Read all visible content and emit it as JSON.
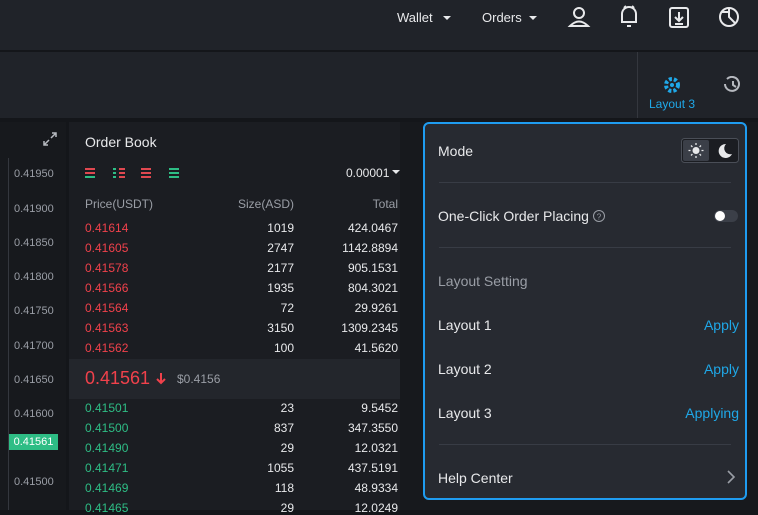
{
  "nav": {
    "wallet": "Wallet",
    "orders": "Orders"
  },
  "toolbar": {
    "layout": "Layout 3"
  },
  "price_axis": {
    "labels": [
      "0.41950",
      "0.41900",
      "0.41850",
      "0.41800",
      "0.41750",
      "0.41700",
      "0.41650",
      "0.41600",
      "0.41500"
    ],
    "current": "0.41561"
  },
  "order_book": {
    "title": "Order Book",
    "precision": "0.00001",
    "headers": [
      "Price(USDT)",
      "Size(ASD)",
      "Total"
    ],
    "asks": [
      [
        "0.41614",
        "1019",
        "424.0467"
      ],
      [
        "0.41605",
        "2747",
        "1142.8894"
      ],
      [
        "0.41578",
        "2177",
        "905.1531"
      ],
      [
        "0.41566",
        "1935",
        "804.3021"
      ],
      [
        "0.41564",
        "72",
        "29.9261"
      ],
      [
        "0.41563",
        "3150",
        "1309.2345"
      ],
      [
        "0.41562",
        "100",
        "41.5620"
      ]
    ],
    "last_price": "0.41561",
    "last_price_usd": "$0.4156",
    "bids": [
      [
        "0.41501",
        "23",
        "9.5452"
      ],
      [
        "0.41500",
        "837",
        "347.3550"
      ],
      [
        "0.41490",
        "29",
        "12.0321"
      ],
      [
        "0.41471",
        "1055",
        "437.5191"
      ],
      [
        "0.41469",
        "118",
        "48.9334"
      ],
      [
        "0.41465",
        "29",
        "12.0249"
      ]
    ]
  },
  "settings": {
    "mode": "Mode",
    "one_click": "One-Click Order Placing",
    "layout_setting": "Layout Setting",
    "layouts": [
      {
        "name": "Layout 1",
        "action": "Apply"
      },
      {
        "name": "Layout 2",
        "action": "Apply"
      },
      {
        "name": "Layout 3",
        "action": "Applying"
      }
    ],
    "help_center": "Help Center"
  }
}
